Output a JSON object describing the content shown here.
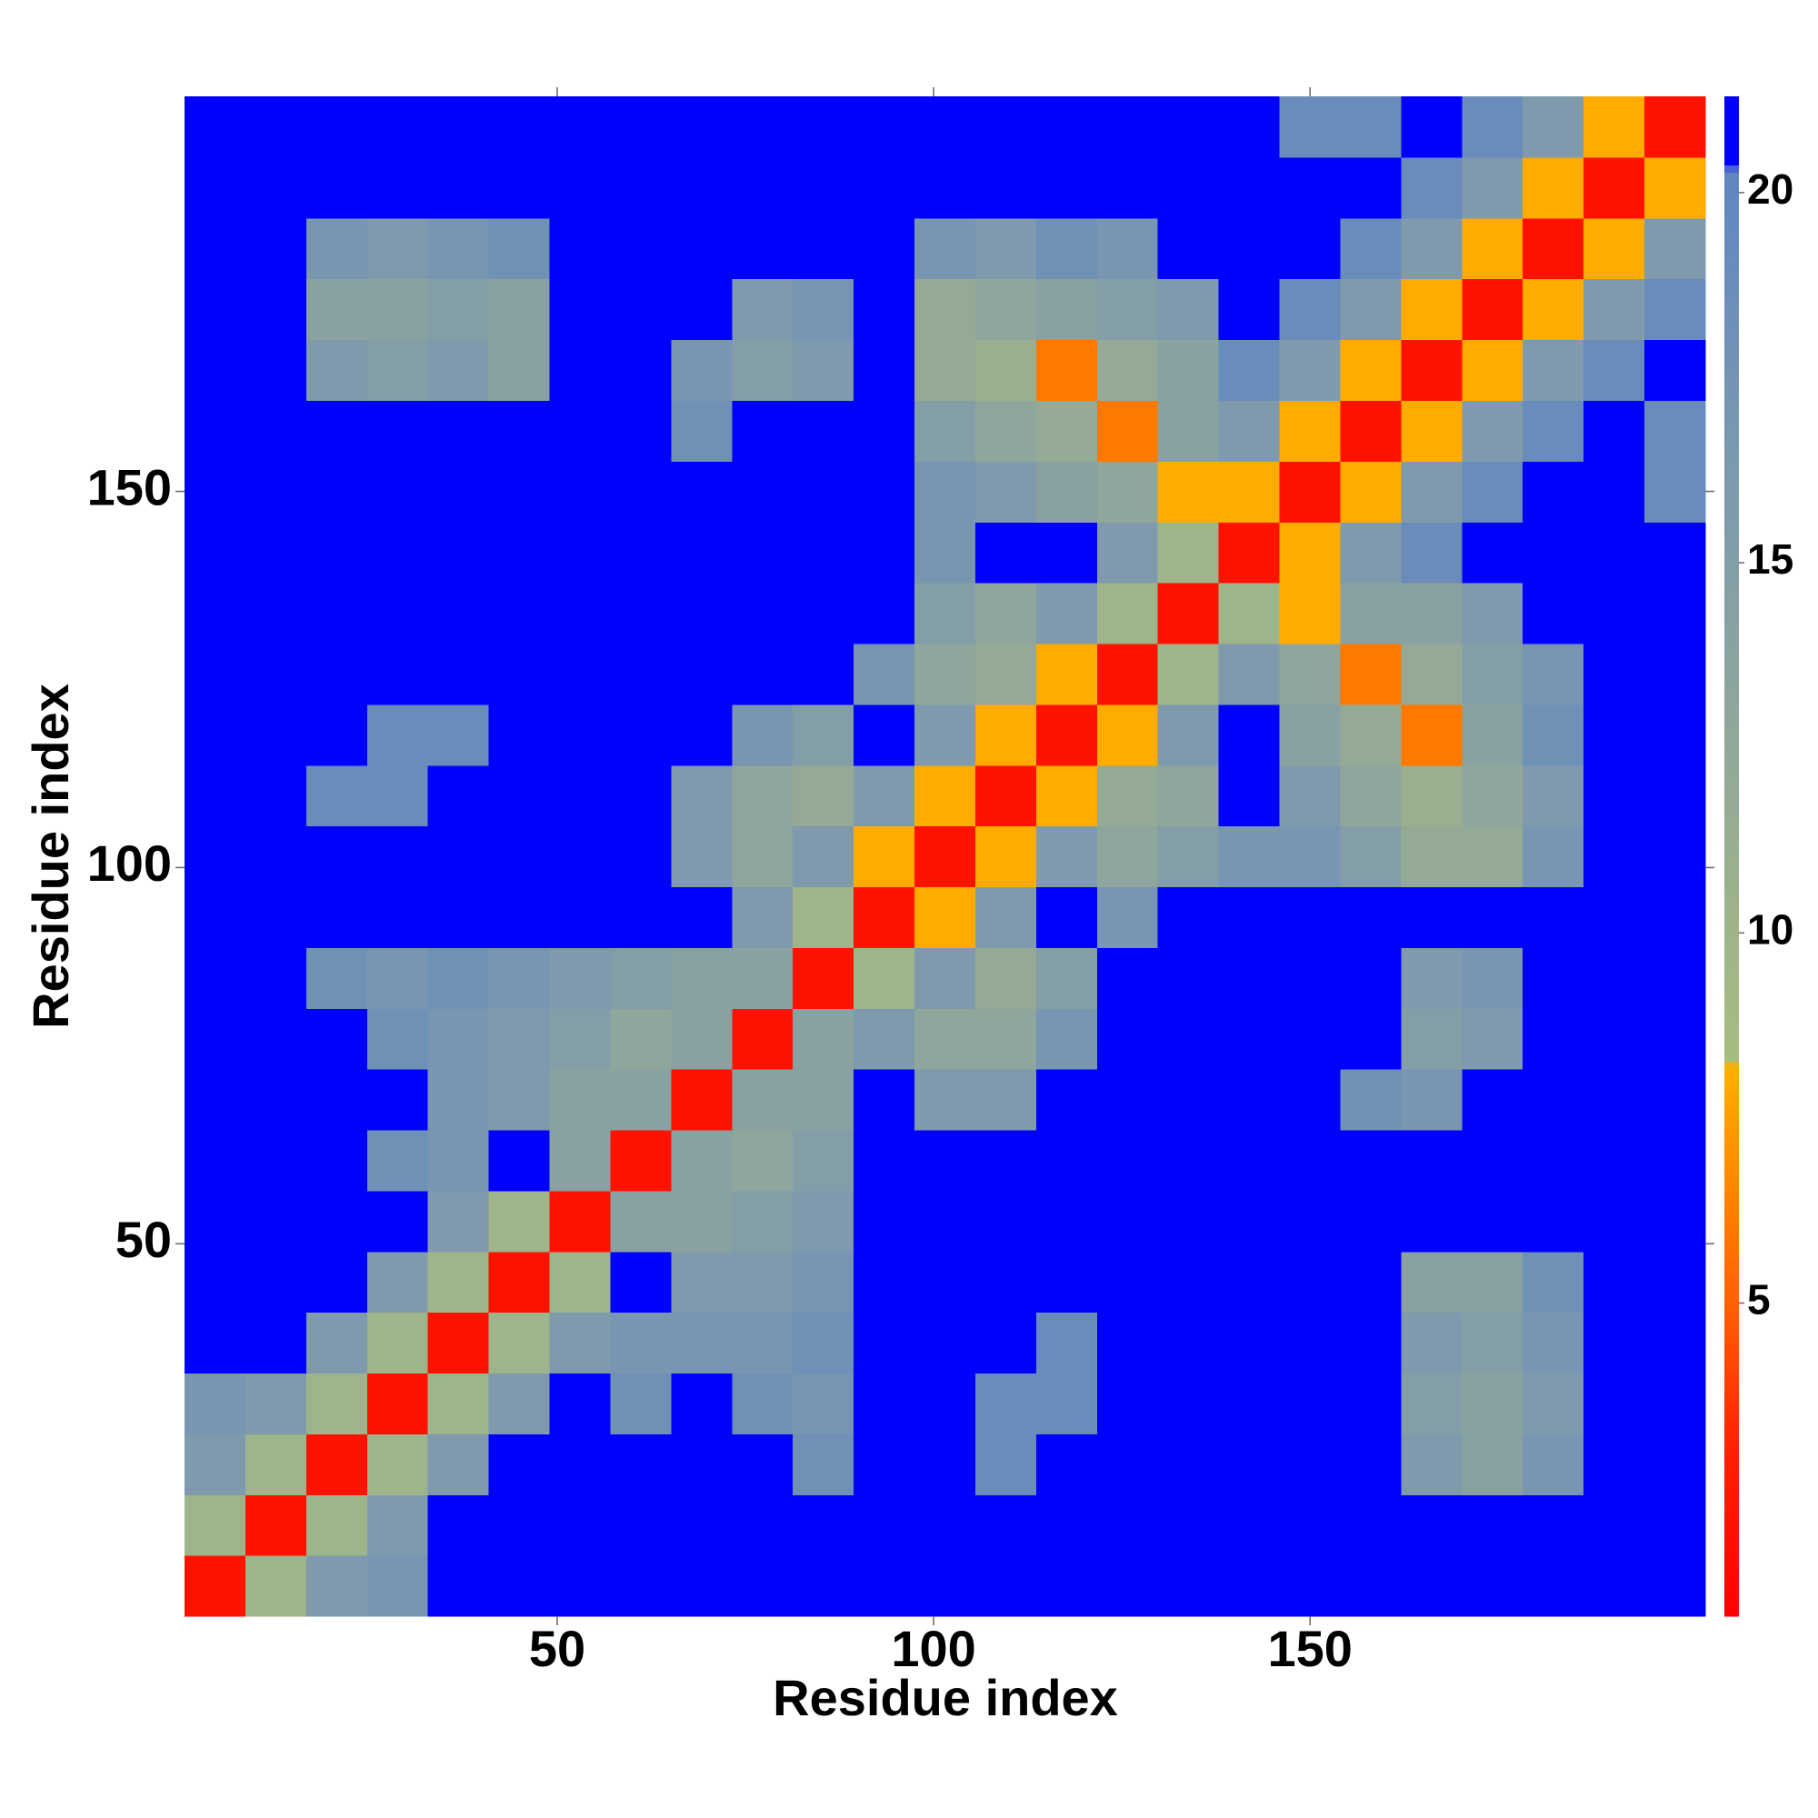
{
  "chart_data": {
    "type": "heatmap",
    "xlabel": "Residue index",
    "ylabel": "Residue index",
    "xlim": [
      0.5,
      202.5
    ],
    "ylim": [
      0.5,
      202.5
    ],
    "xticks": [
      50,
      100,
      150
    ],
    "yticks": [
      50,
      100,
      150
    ],
    "xbins": [
      0.5,
      8.58,
      16.66,
      24.74,
      32.82,
      40.9,
      48.98,
      57.06,
      65.14,
      73.22,
      81.3,
      89.38,
      97.46,
      105.54,
      113.62,
      121.7,
      129.78,
      137.86,
      145.94,
      154.02,
      162.1,
      170.18,
      178.26,
      186.34,
      194.42,
      202.5
    ],
    "ybins": [
      0.5,
      8.58,
      16.66,
      24.74,
      32.82,
      40.9,
      48.98,
      57.06,
      65.14,
      73.22,
      81.3,
      89.38,
      97.46,
      105.54,
      113.62,
      121.7,
      129.78,
      137.86,
      145.94,
      154.02,
      162.1,
      170.18,
      178.26,
      186.34,
      194.42,
      202.5
    ],
    "values": [
      [
        2,
        10,
        16,
        17,
        21,
        21,
        21,
        21,
        21,
        21,
        21,
        21,
        21,
        21,
        21,
        21,
        21,
        21,
        21,
        21,
        21,
        21,
        21,
        21,
        21
      ],
      [
        10,
        2,
        10,
        16,
        21,
        21,
        21,
        21,
        21,
        21,
        21,
        21,
        21,
        21,
        21,
        21,
        21,
        21,
        21,
        21,
        21,
        21,
        21,
        21,
        21
      ],
      [
        16,
        10,
        2,
        10,
        16,
        21,
        21,
        21,
        21,
        21,
        18,
        21,
        21,
        19,
        21,
        21,
        21,
        21,
        21,
        21,
        16,
        14,
        17,
        21,
        21
      ],
      [
        17,
        16,
        10,
        2,
        10,
        16,
        21,
        18,
        21,
        18,
        17,
        21,
        21,
        19,
        19,
        21,
        21,
        21,
        21,
        21,
        15,
        14,
        16,
        21,
        21
      ],
      [
        21,
        21,
        16,
        10,
        2,
        10,
        16,
        17,
        17,
        17,
        18,
        21,
        21,
        21,
        19,
        21,
        21,
        21,
        21,
        21,
        16,
        15,
        17,
        21,
        21
      ],
      [
        21,
        21,
        21,
        16,
        10,
        2,
        10,
        21,
        16,
        16,
        17,
        21,
        21,
        21,
        21,
        21,
        21,
        21,
        21,
        21,
        14,
        14,
        18,
        21,
        21
      ],
      [
        21,
        21,
        21,
        21,
        16,
        10,
        2,
        14,
        14,
        15,
        16,
        21,
        21,
        21,
        21,
        21,
        21,
        21,
        21,
        21,
        21,
        21,
        21,
        21,
        21
      ],
      [
        21,
        21,
        21,
        18,
        17,
        21,
        14,
        2,
        14,
        13,
        15,
        21,
        21,
        21,
        21,
        21,
        21,
        21,
        21,
        21,
        21,
        21,
        21,
        21,
        21
      ],
      [
        21,
        21,
        21,
        21,
        17,
        16,
        14,
        14,
        2,
        14,
        14,
        21,
        16,
        16,
        21,
        21,
        21,
        21,
        21,
        18,
        17,
        21,
        21,
        21,
        21
      ],
      [
        21,
        21,
        21,
        18,
        17,
        16,
        15,
        13,
        14,
        2,
        14,
        16,
        13,
        13,
        17,
        21,
        21,
        21,
        21,
        21,
        15,
        16,
        21,
        21,
        21
      ],
      [
        21,
        21,
        18,
        17,
        18,
        17,
        16,
        15,
        14,
        14,
        2,
        10,
        16,
        12,
        15,
        21,
        21,
        21,
        21,
        21,
        16,
        17,
        21,
        21,
        21
      ],
      [
        21,
        21,
        21,
        21,
        21,
        21,
        21,
        21,
        21,
        16,
        10,
        2,
        8,
        16,
        21,
        17,
        21,
        21,
        21,
        21,
        21,
        21,
        21,
        21,
        21
      ],
      [
        21,
        21,
        21,
        21,
        21,
        21,
        21,
        21,
        16,
        13,
        16,
        8,
        2,
        8,
        16,
        13,
        15,
        17,
        17,
        15,
        12,
        12,
        17,
        21,
        21
      ],
      [
        21,
        21,
        19,
        19,
        21,
        21,
        21,
        21,
        16,
        13,
        12,
        16,
        8,
        2,
        8,
        12,
        13,
        21,
        16,
        13,
        11,
        13,
        16,
        21,
        21
      ],
      [
        21,
        21,
        21,
        19,
        19,
        21,
        21,
        21,
        21,
        17,
        15,
        21,
        16,
        8,
        2,
        8,
        16,
        21,
        14,
        12,
        6,
        14,
        18,
        21,
        21
      ],
      [
        21,
        21,
        21,
        21,
        21,
        21,
        21,
        21,
        21,
        21,
        21,
        17,
        13,
        12,
        8,
        2,
        10,
        16,
        13,
        6,
        12,
        15,
        17,
        21,
        21
      ],
      [
        21,
        21,
        21,
        21,
        21,
        21,
        21,
        21,
        21,
        21,
        21,
        21,
        15,
        13,
        16,
        10,
        2,
        10,
        8,
        14,
        14,
        16,
        21,
        21,
        21
      ],
      [
        21,
        21,
        21,
        21,
        21,
        21,
        21,
        21,
        21,
        21,
        21,
        21,
        17,
        21,
        21,
        16,
        10,
        2,
        8,
        16,
        19,
        21,
        21,
        21,
        21
      ],
      [
        21,
        21,
        21,
        21,
        21,
        21,
        21,
        21,
        21,
        21,
        21,
        21,
        17,
        16,
        14,
        13,
        8,
        8,
        2,
        8,
        16,
        19,
        21,
        21,
        19
      ],
      [
        21,
        21,
        21,
        21,
        21,
        21,
        21,
        21,
        18,
        21,
        21,
        21,
        15,
        13,
        12,
        6,
        14,
        16,
        8,
        2,
        8,
        16,
        19,
        21,
        19
      ],
      [
        21,
        21,
        16,
        15,
        16,
        14,
        21,
        21,
        17,
        15,
        16,
        21,
        12,
        11,
        6,
        12,
        14,
        19,
        16,
        8,
        2,
        8,
        16,
        19,
        21
      ],
      [
        21,
        21,
        14,
        14,
        15,
        14,
        21,
        21,
        21,
        16,
        17,
        21,
        12,
        13,
        14,
        15,
        16,
        21,
        19,
        16,
        8,
        2,
        8,
        16,
        19
      ],
      [
        21,
        21,
        17,
        16,
        17,
        18,
        21,
        21,
        21,
        21,
        21,
        21,
        17,
        16,
        18,
        17,
        21,
        21,
        21,
        19,
        16,
        8,
        2,
        8,
        16
      ],
      [
        21,
        21,
        21,
        21,
        21,
        21,
        21,
        21,
        21,
        21,
        21,
        21,
        21,
        21,
        21,
        21,
        21,
        21,
        21,
        21,
        19,
        16,
        8,
        2,
        8
      ],
      [
        21,
        21,
        21,
        21,
        21,
        21,
        21,
        21,
        21,
        21,
        21,
        21,
        21,
        21,
        21,
        21,
        21,
        21,
        19,
        19,
        21,
        19,
        16,
        8,
        2
      ]
    ],
    "colorbar": {
      "lim": [
        0.77,
        21.3
      ],
      "ticks": [
        5,
        10,
        15,
        20
      ]
    },
    "colorscale": [
      [
        0.77,
        "#ff0000"
      ],
      [
        3,
        "#ff2000"
      ],
      [
        5,
        "#ff6000"
      ],
      [
        7,
        "#ff9000"
      ],
      [
        8.2,
        "#ffb000"
      ],
      [
        8.3,
        "#a6bd80"
      ],
      [
        12,
        "#94aa96"
      ],
      [
        17,
        "#7896b2"
      ],
      [
        20.3,
        "#5f86c0"
      ],
      [
        20.4,
        "#0000ff"
      ],
      [
        21.3,
        "#0000ff"
      ]
    ]
  }
}
